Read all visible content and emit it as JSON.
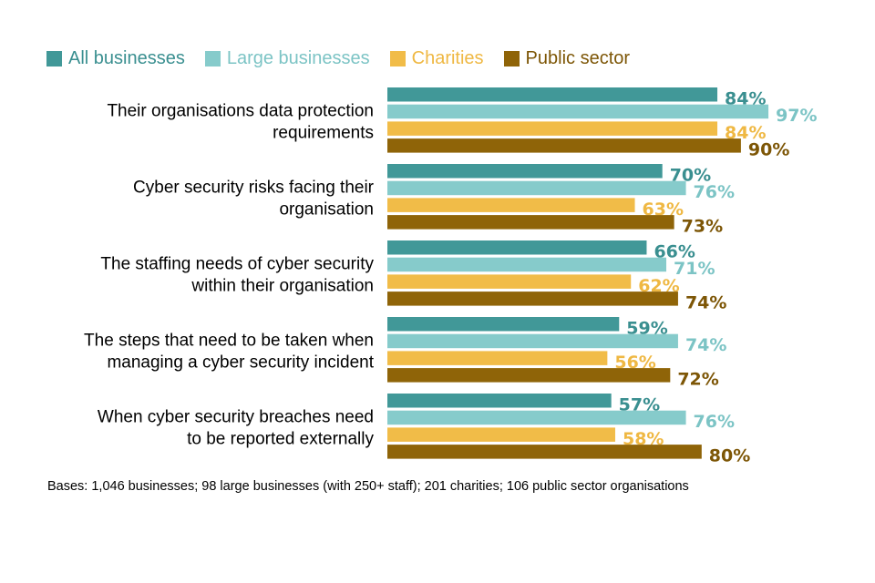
{
  "chart_data": {
    "type": "bar",
    "orientation": "horizontal",
    "title": "",
    "xlabel": "",
    "ylabel": "",
    "xlim": [
      0,
      100
    ],
    "grid": false,
    "legend_position": "top-left",
    "value_suffix": "%",
    "categories": [
      [
        "Their organisations data protection",
        "requirements"
      ],
      [
        "Cyber security risks facing their",
        "organisation"
      ],
      [
        "The staffing needs of cyber security",
        "within their organisation"
      ],
      [
        "The steps that need to be taken when",
        "managing a cyber security incident"
      ],
      [
        "When cyber security breaches need",
        "to be reported externally"
      ]
    ],
    "series": [
      {
        "name": "All businesses",
        "color": "#419898",
        "label_color": "#3a8f90",
        "values": [
          84,
          70,
          66,
          59,
          57
        ]
      },
      {
        "name": "Large businesses",
        "color": "#86cbcb",
        "label_color": "#7cc4c5",
        "values": [
          97,
          76,
          71,
          74,
          76
        ]
      },
      {
        "name": "Charities",
        "color": "#f1bc48",
        "label_color": "#efb843",
        "values": [
          84,
          63,
          62,
          56,
          58
        ]
      },
      {
        "name": "Public sector",
        "color": "#8f6408",
        "label_color": "#7d5606",
        "values": [
          90,
          73,
          74,
          72,
          80
        ]
      }
    ]
  },
  "footnote": "Bases: 1,046 businesses; 98 large businesses (with 250+ staff); 201 charities; 106 public sector organisations"
}
